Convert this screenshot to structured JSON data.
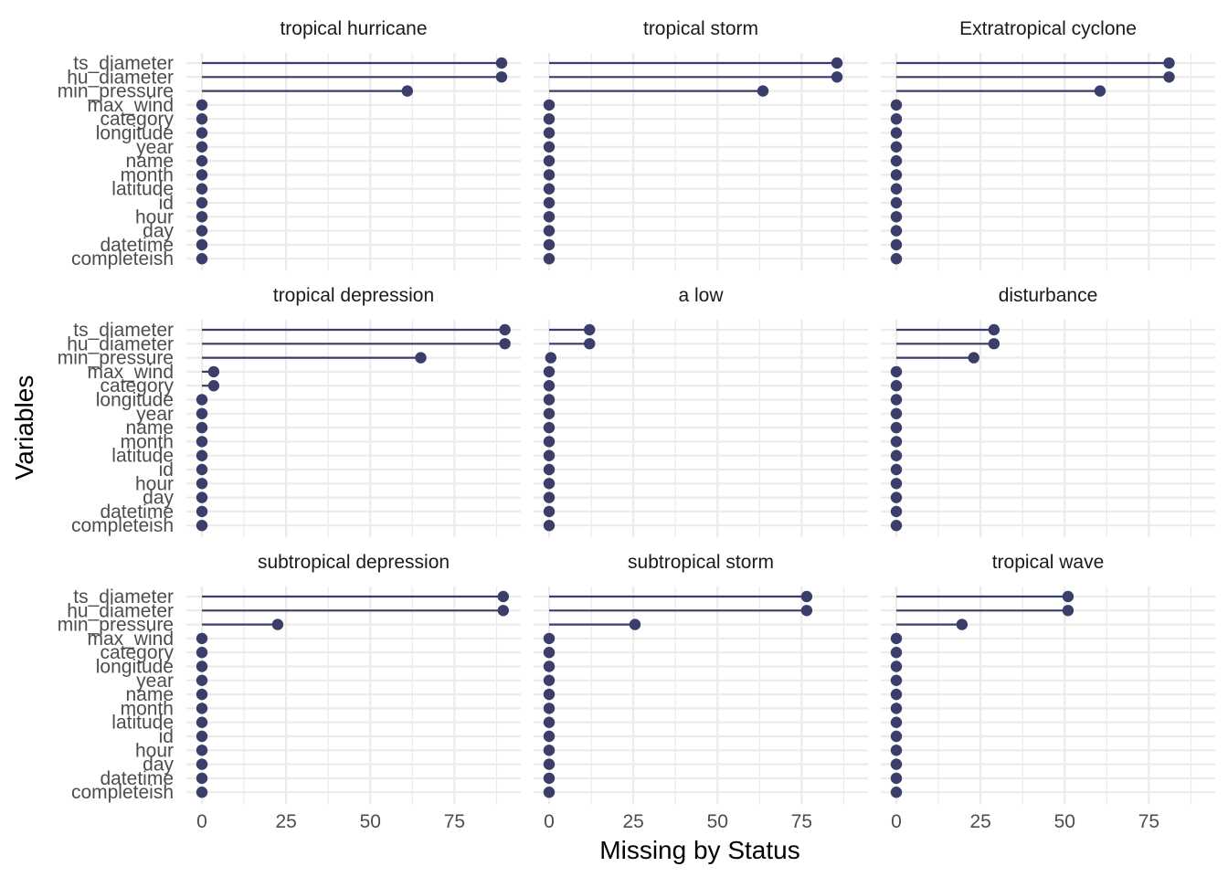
{
  "chart_data": {
    "type": "lollipop",
    "xlabel": "Missing by Status",
    "ylabel": "Variables",
    "xlim": [
      0,
      92
    ],
    "x_ticks": [
      0,
      25,
      50,
      75
    ],
    "x_tick_labels": [
      "0",
      "25",
      "50",
      "75"
    ],
    "grid": true,
    "layout": "facet-3x3",
    "variables": [
      "ts_diameter",
      "hu_diameter",
      "min_pressure",
      "max_wind",
      "category",
      "longitude",
      "year",
      "name",
      "month",
      "latitude",
      "id",
      "hour",
      "day",
      "datetime",
      "completeish"
    ],
    "colors": {
      "segment": "#3b3d6b",
      "point": "#3b3d6b",
      "grid": "#ebebeb"
    },
    "panels": [
      {
        "title": "tropical hurricane",
        "values": [
          89,
          89,
          61,
          0,
          0,
          0,
          0,
          0,
          0,
          0,
          0,
          0,
          0,
          0,
          0
        ]
      },
      {
        "title": "tropical storm",
        "values": [
          85.5,
          85.5,
          63.5,
          0,
          0,
          0,
          0,
          0,
          0,
          0,
          0,
          0,
          0,
          0,
          0
        ]
      },
      {
        "title": "Extratropical cyclone",
        "values": [
          81,
          81,
          60.5,
          0,
          0,
          0,
          0,
          0,
          0,
          0,
          0,
          0,
          0,
          0,
          0
        ]
      },
      {
        "title": "tropical depression",
        "values": [
          90,
          90,
          65,
          3.5,
          3.5,
          0,
          0,
          0,
          0,
          0,
          0,
          0,
          0,
          0,
          0
        ]
      },
      {
        "title": "a low",
        "values": [
          12,
          12,
          0.5,
          0,
          0,
          0,
          0,
          0,
          0,
          0,
          0,
          0,
          0,
          0,
          0
        ]
      },
      {
        "title": "disturbance",
        "values": [
          29,
          29,
          23,
          0,
          0,
          0,
          0,
          0,
          0,
          0,
          0,
          0,
          0,
          0,
          0
        ]
      },
      {
        "title": "subtropical depression",
        "values": [
          89.5,
          89.5,
          22.5,
          0,
          0,
          0,
          0,
          0,
          0,
          0,
          0,
          0,
          0,
          0,
          0
        ]
      },
      {
        "title": "subtropical storm",
        "values": [
          76.5,
          76.5,
          25.5,
          0,
          0,
          0,
          0,
          0,
          0,
          0,
          0,
          0,
          0,
          0,
          0
        ]
      },
      {
        "title": "tropical wave",
        "values": [
          51,
          51,
          19.5,
          0,
          0,
          0,
          0,
          0,
          0,
          0,
          0,
          0,
          0,
          0,
          0
        ]
      }
    ]
  }
}
